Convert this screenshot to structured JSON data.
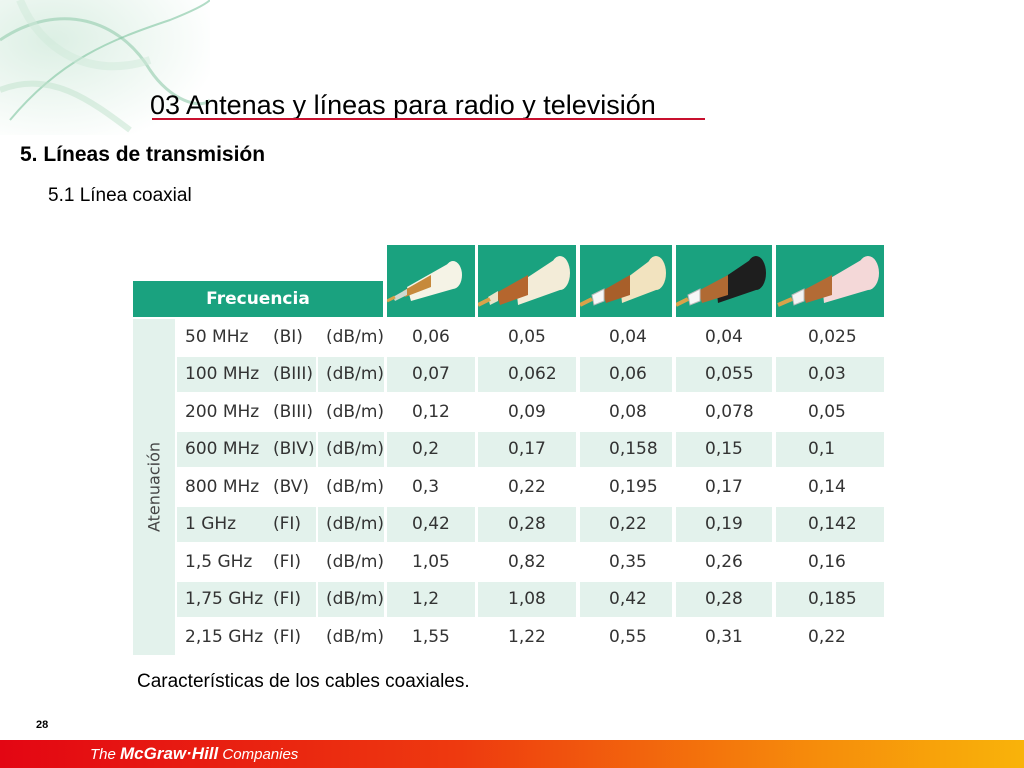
{
  "slide": {
    "title": "03  Antenas y líneas para radio y televisión",
    "section_heading": "5. Líneas de transmisión",
    "subsection_heading": "5.1 Línea coaxial",
    "caption": "Características de los cables coaxiales.",
    "page_number": "28"
  },
  "footer": {
    "brand_prefix": "The ",
    "brand_name": "McGraw·Hill",
    "brand_suffix": " Companies"
  },
  "table": {
    "frequency_header": "Frecuencia",
    "attenuation_label": "Atenuación",
    "cable_icons": [
      "coax-cable-white-icon",
      "coax-cable-beige-braided-icon",
      "coax-cable-cream-foam-icon",
      "coax-cable-black-icon",
      "coax-cable-pink-icon"
    ],
    "rows": [
      {
        "freq": "50 MHz",
        "band": "(BI)",
        "unit": "(dB/m)",
        "values": [
          "0,06",
          "0,05",
          "0,04",
          "0,04",
          "0,025"
        ]
      },
      {
        "freq": "100 MHz",
        "band": "(BIII)",
        "unit": "(dB/m)",
        "values": [
          "0,07",
          "0,062",
          "0,06",
          "0,055",
          "0,03"
        ]
      },
      {
        "freq": "200 MHz",
        "band": "(BIII)",
        "unit": "(dB/m)",
        "values": [
          "0,12",
          "0,09",
          "0,08",
          "0,078",
          "0,05"
        ]
      },
      {
        "freq": "600 MHz",
        "band": "(BIV)",
        "unit": "(dB/m)",
        "values": [
          "0,2",
          "0,17",
          "0,158",
          "0,15",
          "0,1"
        ]
      },
      {
        "freq": "800 MHz",
        "band": "(BV)",
        "unit": "(dB/m)",
        "values": [
          "0,3",
          "0,22",
          "0,195",
          "0,17",
          "0,14"
        ]
      },
      {
        "freq": "1 GHz",
        "band": "(FI)",
        "unit": "(dB/m)",
        "values": [
          "0,42",
          "0,28",
          "0,22",
          "0,19",
          "0,142"
        ]
      },
      {
        "freq": "1,5 GHz",
        "band": "(FI)",
        "unit": "(dB/m)",
        "values": [
          "1,05",
          "0,82",
          "0,35",
          "0,26",
          "0,16"
        ]
      },
      {
        "freq": "1,75 GHz",
        "band": "(FI)",
        "unit": "(dB/m)",
        "values": [
          "1,2",
          "1,08",
          "0,42",
          "0,28",
          "0,185"
        ]
      },
      {
        "freq": "2,15 GHz",
        "band": "(FI)",
        "unit": "(dB/m)",
        "values": [
          "1,55",
          "1,22",
          "0,55",
          "0,31",
          "0,22"
        ]
      }
    ]
  },
  "colors": {
    "header_green": "#1aa27f",
    "row_tint": "#e3f2ec",
    "title_rule": "#c8102e"
  }
}
